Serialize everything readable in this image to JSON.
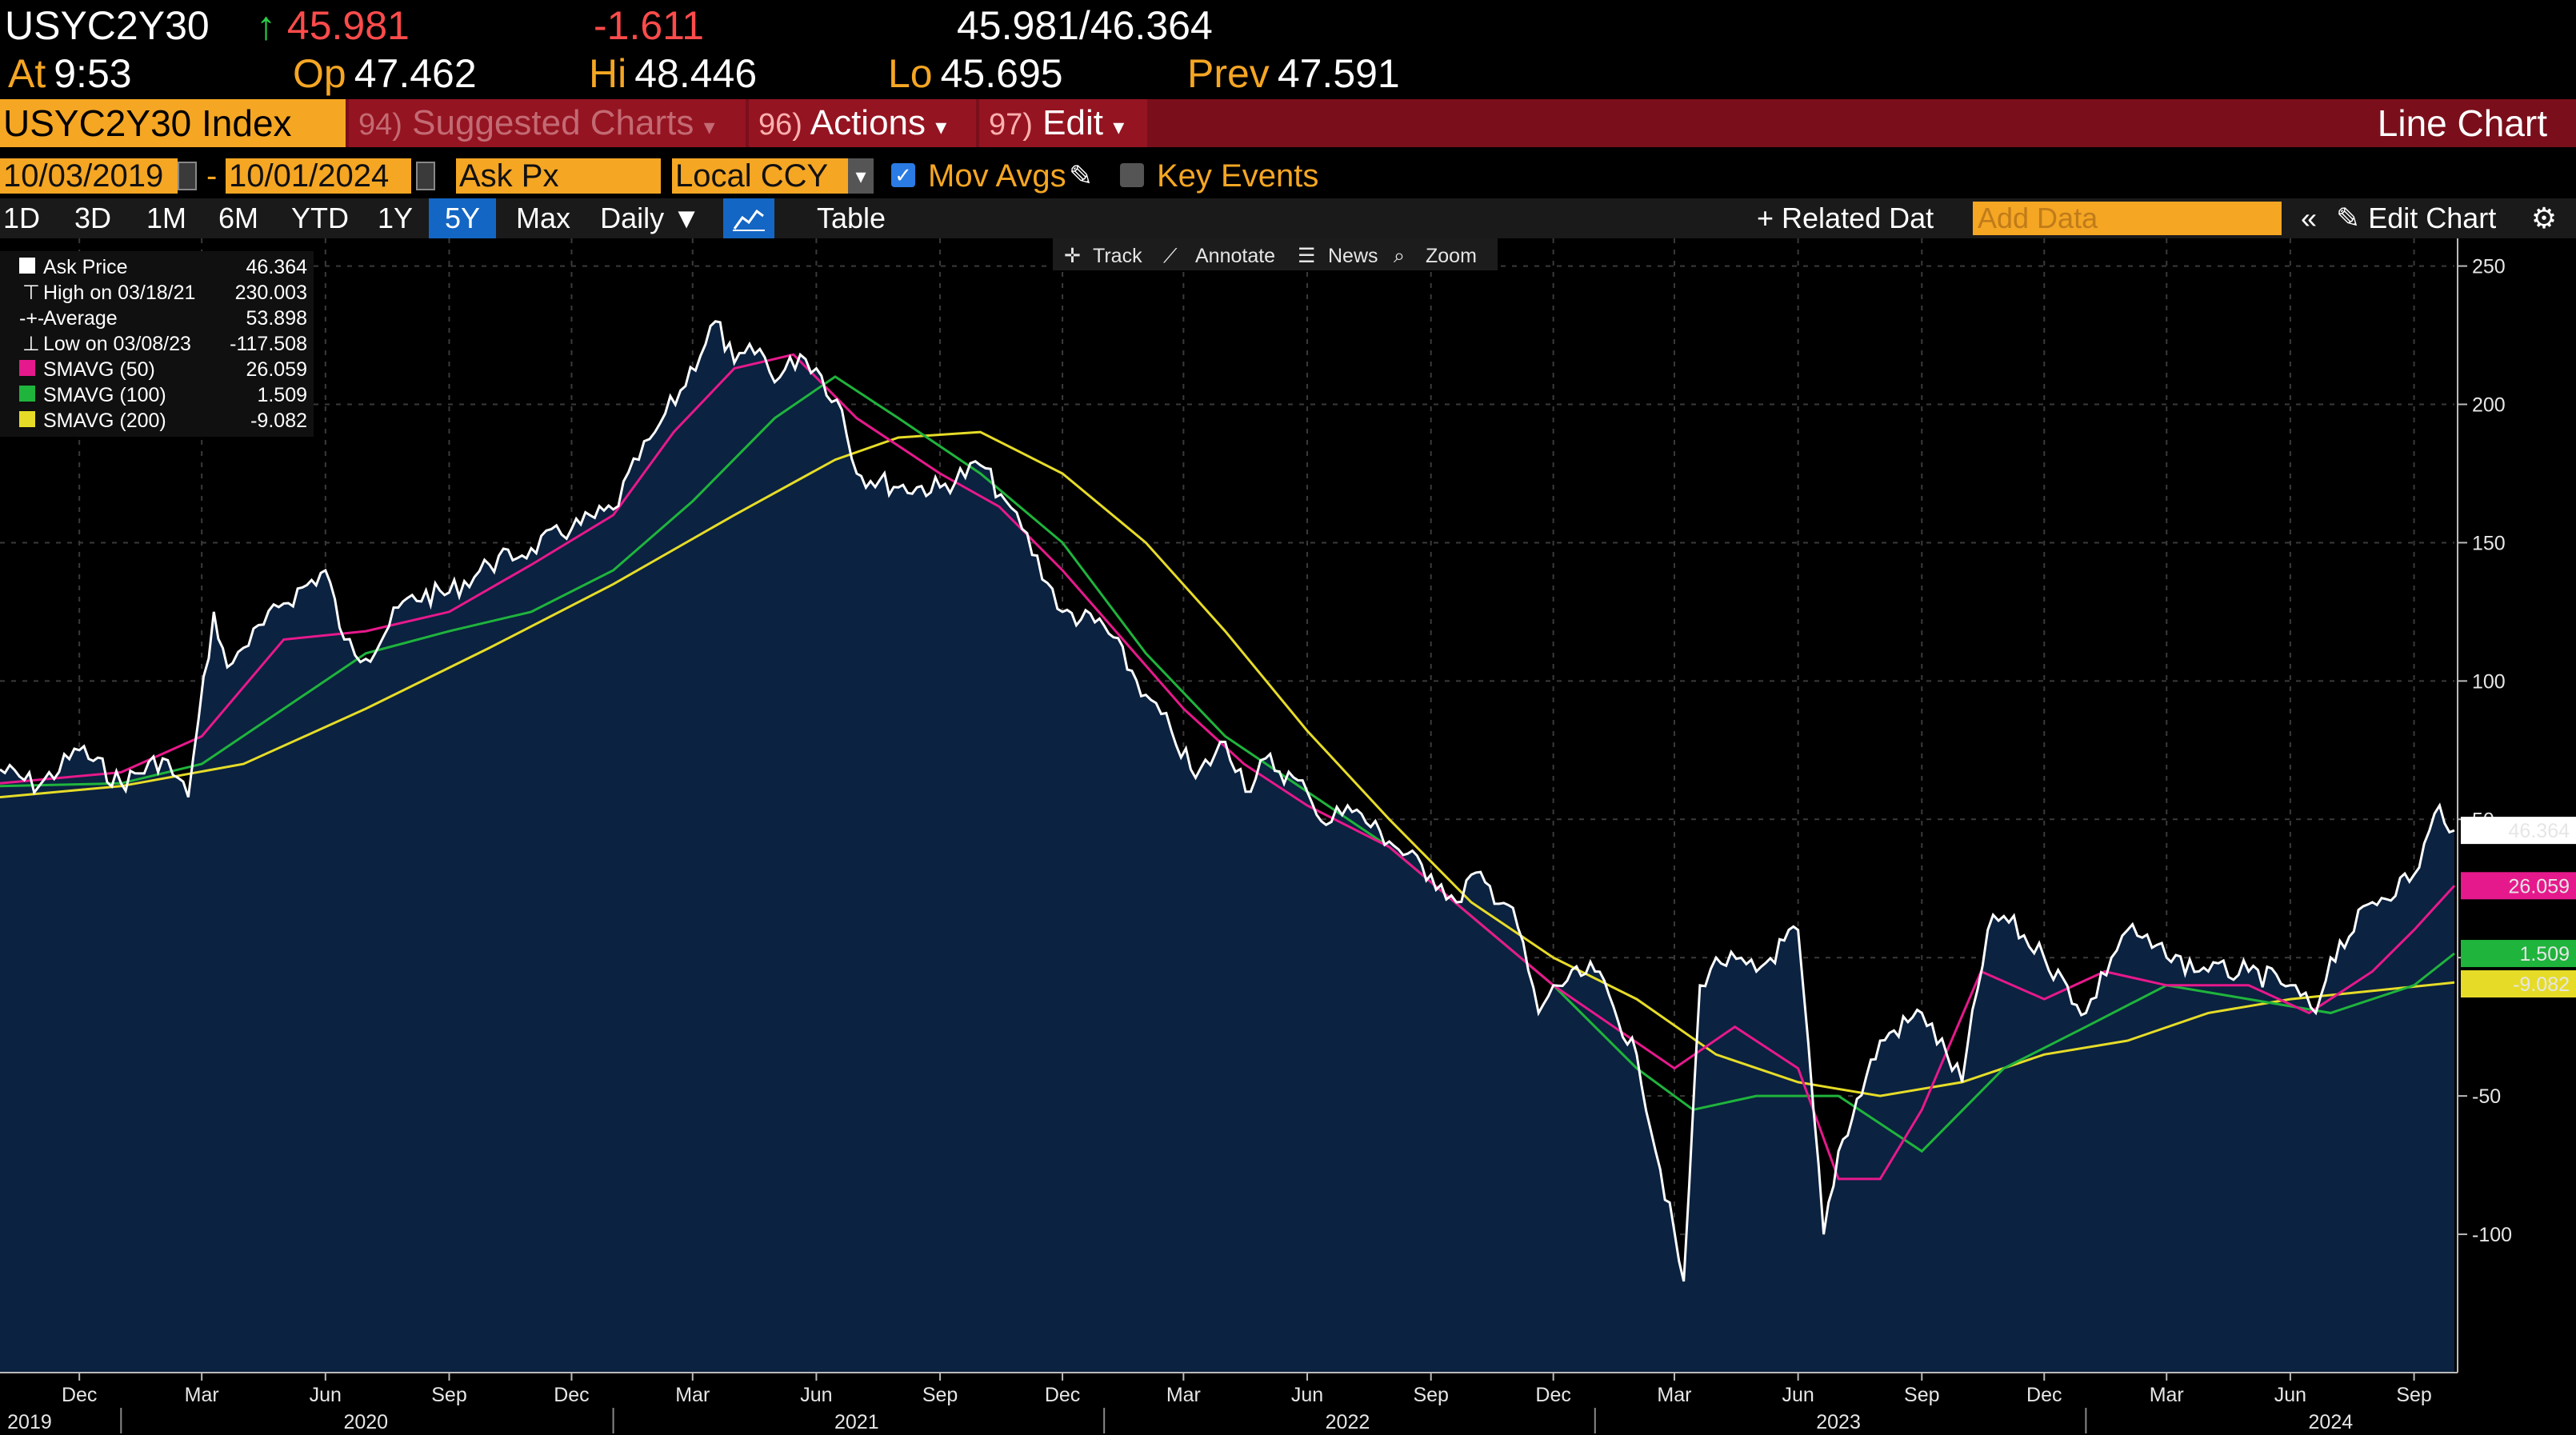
{
  "quote": {
    "ticker": "USYC2Y30",
    "arrow": "↑",
    "last": "45.981",
    "change": "-1.611",
    "bid_ask": "45.981/46.364",
    "at_label": "At",
    "at_value": "9:53",
    "open_label": "Op",
    "open_value": "47.462",
    "high_label": "Hi",
    "high_value": "48.446",
    "low_label": "Lo",
    "low_value": "45.695",
    "prev_label": "Prev",
    "prev_value": "47.591"
  },
  "command_bar": {
    "security": "USYC2Y30 Index",
    "suggested_num": "94)",
    "suggested_label": "Suggested Charts",
    "actions_num": "96)",
    "actions_label": "Actions",
    "edit_num": "97)",
    "edit_label": "Edit",
    "chart_type": "Line Chart"
  },
  "options": {
    "start_date": "10/03/2019",
    "end_date": "10/01/2024",
    "field": "Ask Px",
    "currency": "Local CCY",
    "mov_avgs": "Mov Avgs",
    "key_events": "Key Events"
  },
  "periods": {
    "items": [
      "1D",
      "3D",
      "1M",
      "6M",
      "YTD",
      "1Y",
      "5Y",
      "Max"
    ],
    "active": "5Y",
    "frequency": "Daily",
    "table": "Table",
    "related_data": "+ Related Dat",
    "add_data_placeholder": "Add Data",
    "edit_chart": "Edit Chart"
  },
  "toolbar": {
    "track": "Track",
    "annotate": "Annotate",
    "news": "News",
    "zoom": "Zoom"
  },
  "legend": {
    "ask_price_label": "Ask Price",
    "ask_price_value": "46.364",
    "high_label": "High on 03/18/21",
    "high_value": "230.003",
    "average_label": "Average",
    "average_value": "53.898",
    "low_label": "Low on 03/08/23",
    "low_value": "-117.508",
    "sma50_label": "SMAVG (50)",
    "sma50_value": "26.059",
    "sma100_label": "SMAVG (100)",
    "sma100_value": "1.509",
    "sma200_label": "SMAVG (200)",
    "sma200_value": "-9.082"
  },
  "colors": {
    "background": "#000000",
    "area_fill": "#0b2240",
    "price": "#ffffff",
    "sma50": "#e6198c",
    "sma100": "#1fb43c",
    "sma200": "#e6dc28",
    "accent": "#f5a623",
    "command_bar": "#7a0f1b"
  },
  "chart_data": {
    "type": "line",
    "title": "",
    "xlabel": "",
    "ylabel": "",
    "ylim": [
      -150,
      260
    ],
    "xlim": [
      "2019-10-03",
      "2024-10-01"
    ],
    "y_ticks": [
      250,
      200,
      150,
      100,
      50,
      0,
      -50,
      -100
    ],
    "y_tick_labels": [
      "250",
      "200",
      "150",
      "100",
      "50",
      "0",
      "-50",
      "-100"
    ],
    "x_month_ticks": [
      {
        "label": "Dec",
        "date": "2019-12-01"
      },
      {
        "label": "Mar",
        "date": "2020-03-01"
      },
      {
        "label": "Jun",
        "date": "2020-06-01"
      },
      {
        "label": "Sep",
        "date": "2020-09-01"
      },
      {
        "label": "Dec",
        "date": "2020-12-01"
      },
      {
        "label": "Mar",
        "date": "2021-03-01"
      },
      {
        "label": "Jun",
        "date": "2021-06-01"
      },
      {
        "label": "Sep",
        "date": "2021-09-01"
      },
      {
        "label": "Dec",
        "date": "2021-12-01"
      },
      {
        "label": "Mar",
        "date": "2022-03-01"
      },
      {
        "label": "Jun",
        "date": "2022-06-01"
      },
      {
        "label": "Sep",
        "date": "2022-09-01"
      },
      {
        "label": "Dec",
        "date": "2022-12-01"
      },
      {
        "label": "Mar",
        "date": "2023-03-01"
      },
      {
        "label": "Jun",
        "date": "2023-06-01"
      },
      {
        "label": "Sep",
        "date": "2023-09-01"
      },
      {
        "label": "Dec",
        "date": "2023-12-01"
      },
      {
        "label": "Mar",
        "date": "2024-03-01"
      },
      {
        "label": "Jun",
        "date": "2024-06-01"
      },
      {
        "label": "Sep",
        "date": "2024-09-01"
      }
    ],
    "x_year_labels": [
      {
        "label": "2019",
        "date": "2019-10-25"
      },
      {
        "label": "2020",
        "date": "2020-07-01"
      },
      {
        "label": "2021",
        "date": "2021-07-01"
      },
      {
        "label": "2022",
        "date": "2022-07-01"
      },
      {
        "label": "2023",
        "date": "2023-07-01"
      },
      {
        "label": "2024",
        "date": "2024-07-01"
      }
    ],
    "x_year_separators": [
      "2020-01-01",
      "2021-01-01",
      "2022-01-01",
      "2023-01-01",
      "2024-01-01"
    ],
    "series": [
      {
        "name": "Ask Price",
        "x": [
          "2019-10-03",
          "2019-11-01",
          "2019-12-01",
          "2020-01-01",
          "2020-02-01",
          "2020-02-20",
          "2020-03-10",
          "2020-03-20",
          "2020-04-01",
          "2020-05-01",
          "2020-06-01",
          "2020-06-15",
          "2020-07-01",
          "2020-08-01",
          "2020-09-01",
          "2020-10-01",
          "2020-11-01",
          "2020-12-01",
          "2021-01-01",
          "2021-01-20",
          "2021-02-01",
          "2021-02-20",
          "2021-03-18",
          "2021-04-01",
          "2021-04-20",
          "2021-05-01",
          "2021-05-20",
          "2021-06-01",
          "2021-06-20",
          "2021-07-01",
          "2021-08-01",
          "2021-09-01",
          "2021-10-01",
          "2021-10-20",
          "2021-11-01",
          "2021-12-01",
          "2022-01-01",
          "2022-02-01",
          "2022-02-20",
          "2022-03-10",
          "2022-04-01",
          "2022-04-20",
          "2022-05-01",
          "2022-06-01",
          "2022-06-15",
          "2022-07-01",
          "2022-08-01",
          "2022-09-01",
          "2022-09-20",
          "2022-10-01",
          "2022-11-01",
          "2022-11-20",
          "2022-12-01",
          "2023-01-01",
          "2023-02-01",
          "2023-03-08",
          "2023-03-20",
          "2023-04-01",
          "2023-05-01",
          "2023-06-01",
          "2023-06-20",
          "2023-07-01",
          "2023-08-01",
          "2023-09-01",
          "2023-10-01",
          "2023-10-20",
          "2023-11-01",
          "2023-12-01",
          "2024-01-01",
          "2024-01-20",
          "2024-02-01",
          "2024-03-01",
          "2024-04-01",
          "2024-05-01",
          "2024-06-01",
          "2024-06-20",
          "2024-07-01",
          "2024-08-01",
          "2024-09-01",
          "2024-09-20",
          "2024-10-01"
        ],
        "values": [
          68,
          62,
          75,
          63,
          72,
          58,
          125,
          105,
          112,
          128,
          140,
          115,
          108,
          130,
          132,
          142,
          148,
          155,
          162,
          180,
          190,
          205,
          230,
          215,
          220,
          208,
          218,
          213,
          198,
          175,
          170,
          170,
          178,
          165,
          155,
          125,
          120,
          95,
          82,
          65,
          78,
          60,
          72,
          60,
          48,
          55,
          42,
          30,
          20,
          30,
          18,
          -20,
          -10,
          -5,
          -35,
          -117,
          -10,
          0,
          -5,
          10,
          -100,
          -70,
          -30,
          -20,
          -45,
          10,
          15,
          0,
          -20,
          0,
          10,
          0,
          -5,
          -5,
          -10,
          -20,
          0,
          20,
          30,
          55,
          46
        ]
      },
      {
        "name": "SMAVG (50)",
        "x": [
          "2019-10-03",
          "2020-01-01",
          "2020-03-01",
          "2020-05-01",
          "2020-07-01",
          "2020-09-01",
          "2020-11-01",
          "2021-01-01",
          "2021-02-15",
          "2021-04-01",
          "2021-05-15",
          "2021-07-01",
          "2021-09-01",
          "2021-10-15",
          "2021-12-01",
          "2022-01-15",
          "2022-03-01",
          "2022-04-15",
          "2022-06-01",
          "2022-08-01",
          "2022-10-01",
          "2022-12-01",
          "2023-01-15",
          "2023-03-01",
          "2023-04-15",
          "2023-06-01",
          "2023-07-01",
          "2023-08-01",
          "2023-09-01",
          "2023-10-15",
          "2023-12-01",
          "2024-01-15",
          "2024-03-01",
          "2024-05-01",
          "2024-06-15",
          "2024-08-01",
          "2024-09-01",
          "2024-10-01"
        ],
        "values": [
          63,
          67,
          80,
          115,
          118,
          125,
          142,
          160,
          190,
          213,
          218,
          195,
          175,
          163,
          140,
          115,
          90,
          70,
          55,
          40,
          15,
          -10,
          -25,
          -40,
          -25,
          -40,
          -80,
          -80,
          -55,
          -5,
          -15,
          -5,
          -10,
          -10,
          -20,
          -5,
          10,
          26
        ]
      },
      {
        "name": "SMAVG (100)",
        "x": [
          "2019-10-03",
          "2020-01-01",
          "2020-03-01",
          "2020-05-01",
          "2020-07-01",
          "2020-09-01",
          "2020-11-01",
          "2021-01-01",
          "2021-03-01",
          "2021-05-01",
          "2021-06-15",
          "2021-08-01",
          "2021-10-01",
          "2021-12-01",
          "2022-02-01",
          "2022-04-01",
          "2022-06-01",
          "2022-08-01",
          "2022-10-01",
          "2022-12-01",
          "2023-02-01",
          "2023-03-15",
          "2023-05-01",
          "2023-07-01",
          "2023-09-01",
          "2023-11-01",
          "2024-01-01",
          "2024-03-01",
          "2024-05-01",
          "2024-07-01",
          "2024-09-01",
          "2024-10-01"
        ],
        "values": [
          62,
          63,
          70,
          90,
          110,
          118,
          125,
          140,
          165,
          195,
          210,
          195,
          175,
          150,
          110,
          80,
          60,
          40,
          15,
          -10,
          -40,
          -55,
          -50,
          -50,
          -70,
          -40,
          -25,
          -10,
          -15,
          -20,
          -10,
          1.5
        ]
      },
      {
        "name": "SMAVG (200)",
        "x": [
          "2019-10-03",
          "2020-01-01",
          "2020-04-01",
          "2020-07-01",
          "2020-10-01",
          "2021-01-01",
          "2021-04-01",
          "2021-06-15",
          "2021-08-01",
          "2021-10-01",
          "2021-12-01",
          "2022-02-01",
          "2022-04-01",
          "2022-06-01",
          "2022-08-01",
          "2022-10-01",
          "2022-12-01",
          "2023-02-01",
          "2023-04-01",
          "2023-06-01",
          "2023-08-01",
          "2023-10-01",
          "2023-12-01",
          "2024-02-01",
          "2024-04-01",
          "2024-06-01",
          "2024-08-01",
          "2024-10-01"
        ],
        "values": [
          58,
          62,
          70,
          90,
          112,
          135,
          160,
          180,
          188,
          190,
          175,
          150,
          118,
          82,
          50,
          20,
          0,
          -15,
          -35,
          -45,
          -50,
          -45,
          -35,
          -30,
          -20,
          -15,
          -12,
          -9
        ]
      }
    ]
  }
}
